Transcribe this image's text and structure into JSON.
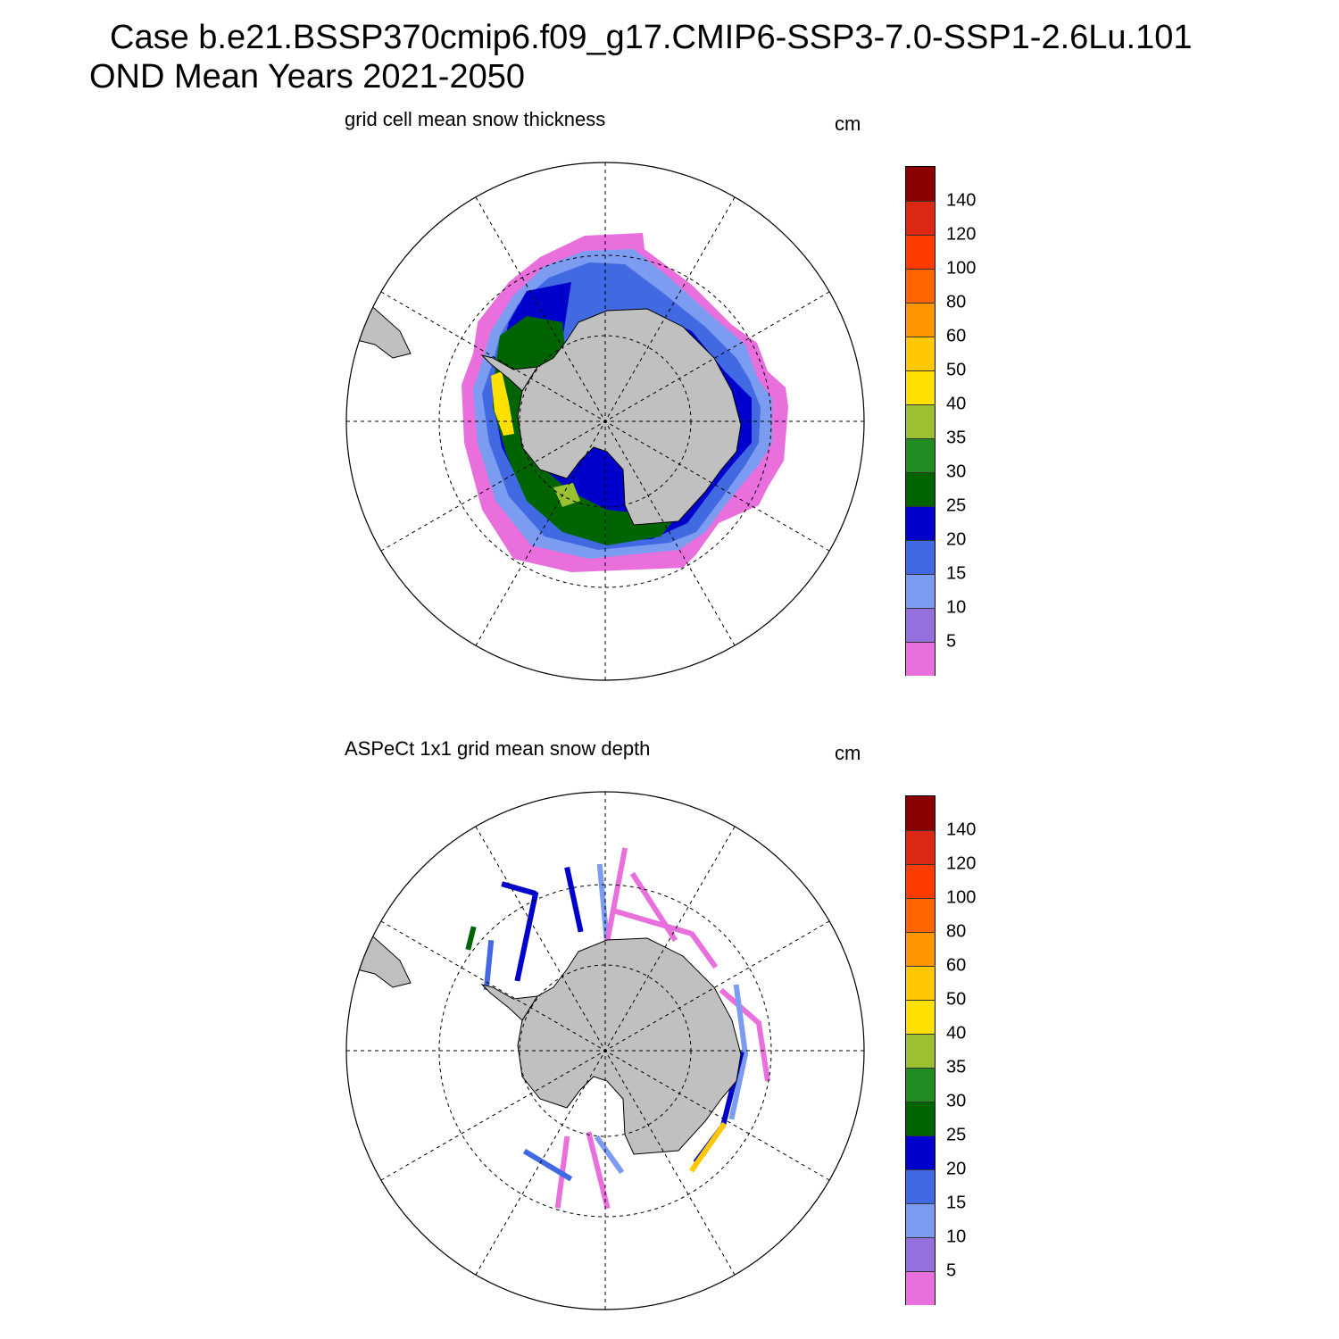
{
  "title": {
    "line1": "Case b.e21.BSSP370cmip6.f09_g17.CMIP6-SSP3-7.0-SSP1-2.6Lu.101",
    "line2": "OND Mean   Years 2021-2050"
  },
  "panels": [
    {
      "subtitle": "grid cell mean snow thickness",
      "unit": "cm"
    },
    {
      "subtitle": "ASPeCt 1x1 grid mean snow depth",
      "unit": "cm"
    }
  ],
  "colorbar": {
    "colors": [
      "#8b0000",
      "#dc2814",
      "#ff3c00",
      "#ff6400",
      "#ff9600",
      "#ffc800",
      "#ffe100",
      "#9bc132",
      "#228b22",
      "#006400",
      "#0000cd",
      "#4169e1",
      "#7b9cf0",
      "#9370db",
      "#e970dc"
    ],
    "labels": [
      "140",
      "120",
      "100",
      "80",
      "60",
      "50",
      "40",
      "35",
      "30",
      "25",
      "20",
      "15",
      "10",
      "5"
    ]
  },
  "colors": {
    "land": "#c0c0c0",
    "background": "#ffffff"
  }
}
